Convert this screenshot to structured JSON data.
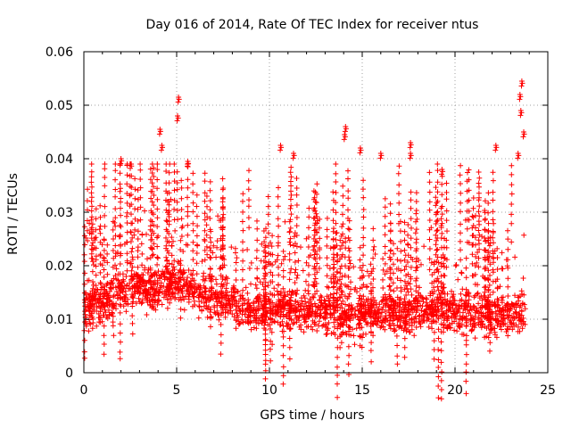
{
  "chart_data": {
    "type": "scatter",
    "title": "Day 016 of 2014, Rate Of TEC Index for receiver ntus",
    "xlabel": "GPS time / hours",
    "ylabel": "ROTI / TECUs",
    "xlim": [
      0,
      25
    ],
    "ylim": [
      0,
      0.06
    ],
    "xticks": [
      0,
      5,
      10,
      15,
      20,
      25
    ],
    "xtick_labels": [
      "0",
      "5",
      "10",
      "15",
      "20",
      "25"
    ],
    "yticks": [
      0,
      0.01,
      0.02,
      0.03,
      0.04,
      0.05,
      0.06
    ],
    "ytick_labels": [
      "0",
      "0.01",
      "0.02",
      "0.03",
      "0.04",
      "0.05",
      "0.06"
    ],
    "grid": true,
    "marker": "plus",
    "marker_color": "#ff0000",
    "x_data_range": [
      0,
      23.8
    ],
    "series": [
      {
        "name": "ROTI",
        "trend_x": [
          0,
          1,
          2,
          3,
          4,
          5,
          6,
          7,
          8,
          9,
          10,
          11,
          12,
          13,
          14,
          15,
          16,
          17,
          18,
          19,
          20,
          21,
          22,
          23,
          23.8
        ],
        "trend_median": [
          0.012,
          0.013,
          0.015,
          0.016,
          0.016,
          0.017,
          0.015,
          0.014,
          0.013,
          0.012,
          0.012,
          0.012,
          0.012,
          0.011,
          0.011,
          0.011,
          0.011,
          0.011,
          0.011,
          0.012,
          0.011,
          0.011,
          0.011,
          0.011,
          0.011
        ],
        "spread_low": 0.003,
        "spread_high": 0.035,
        "peaks": [
          {
            "x": 2.0,
            "y": 0.04
          },
          {
            "x": 4.1,
            "y": 0.0455
          },
          {
            "x": 4.2,
            "y": 0.0425
          },
          {
            "x": 5.1,
            "y": 0.0515
          },
          {
            "x": 5.05,
            "y": 0.048
          },
          {
            "x": 5.6,
            "y": 0.0395
          },
          {
            "x": 10.6,
            "y": 0.0425
          },
          {
            "x": 11.3,
            "y": 0.041
          },
          {
            "x": 14.1,
            "y": 0.046
          },
          {
            "x": 14.05,
            "y": 0.0445
          },
          {
            "x": 14.9,
            "y": 0.042
          },
          {
            "x": 16.0,
            "y": 0.041
          },
          {
            "x": 17.6,
            "y": 0.043
          },
          {
            "x": 17.6,
            "y": 0.041
          },
          {
            "x": 19.3,
            "y": 0.038
          },
          {
            "x": 22.2,
            "y": 0.0425
          },
          {
            "x": 23.6,
            "y": 0.0545
          },
          {
            "x": 23.5,
            "y": 0.052
          },
          {
            "x": 23.55,
            "y": 0.049
          },
          {
            "x": 23.7,
            "y": 0.045
          },
          {
            "x": 23.4,
            "y": 0.041
          }
        ]
      }
    ]
  }
}
